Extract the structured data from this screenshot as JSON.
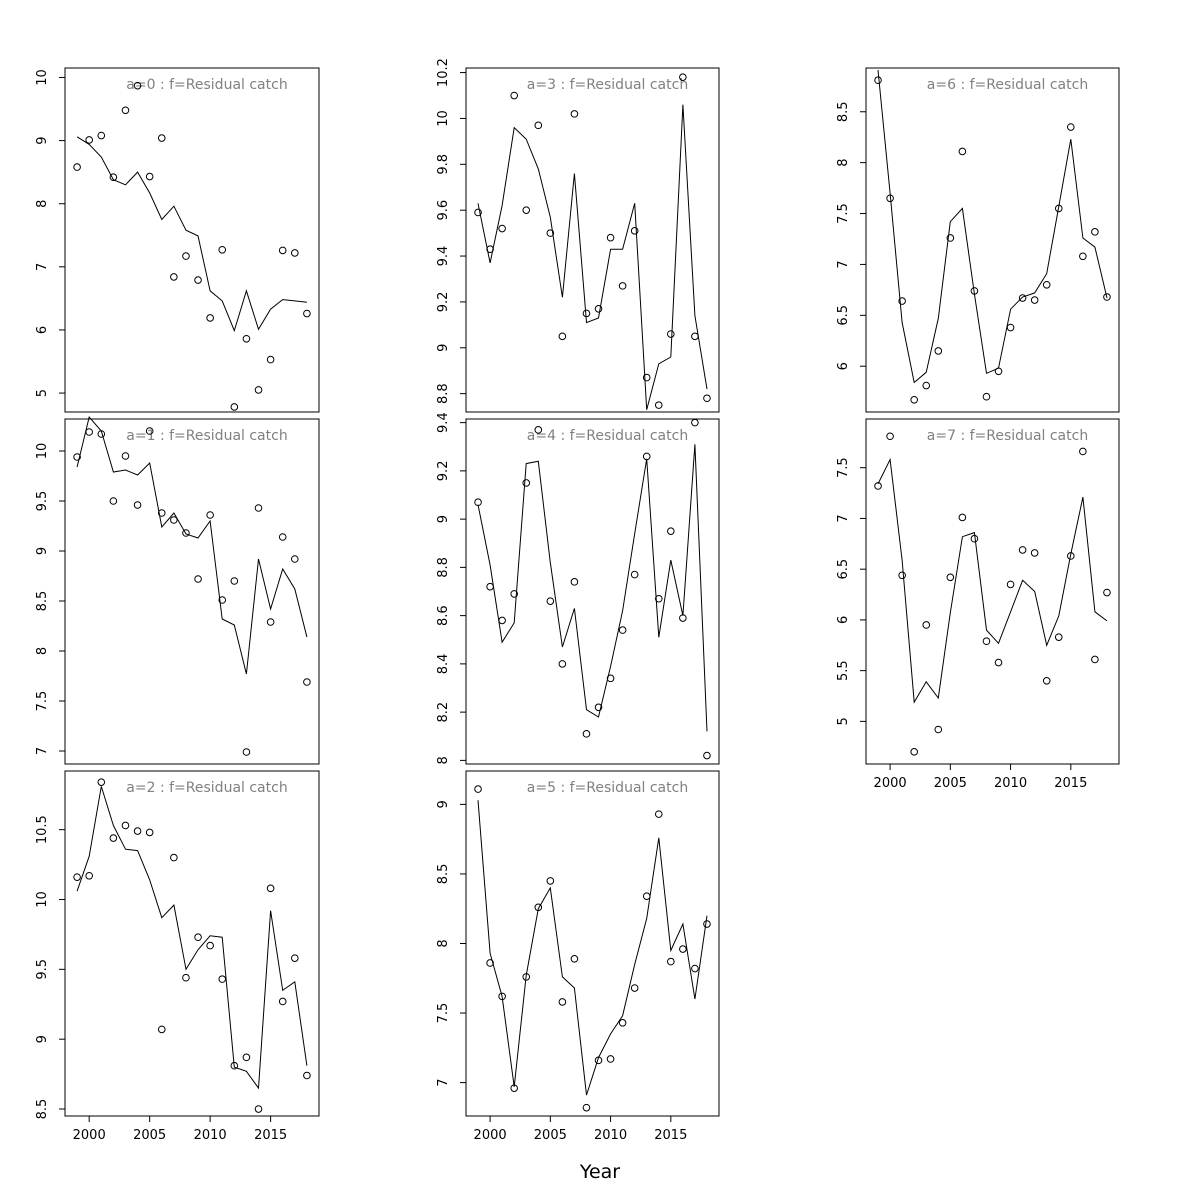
{
  "xlabel": "Year",
  "chart_data": [
    {
      "type": "scatter",
      "title": "a=0  :  f=Residual catch",
      "xlim": [
        1998,
        2019
      ],
      "ylim": [
        4.7,
        10.15
      ],
      "yticks": [
        5,
        6,
        7,
        8,
        9,
        10
      ],
      "xticks": [],
      "x": [
        1999,
        2000,
        2001,
        2002,
        2003,
        2004,
        2005,
        2006,
        2007,
        2008,
        2009,
        2010,
        2011,
        2012,
        2013,
        2014,
        2015,
        2016,
        2017,
        2018
      ],
      "observed": [
        8.58,
        9.01,
        9.08,
        8.42,
        9.48,
        9.87,
        8.43,
        9.04,
        6.84,
        7.17,
        6.79,
        6.19,
        7.27,
        4.78,
        5.86,
        5.05,
        5.53,
        7.26,
        7.22,
        6.26
      ],
      "fitted": [
        9.06,
        8.94,
        8.74,
        8.38,
        8.3,
        8.5,
        8.17,
        7.75,
        7.96,
        7.58,
        7.49,
        6.62,
        6.46,
        5.99,
        6.62,
        6.01,
        6.33,
        6.48,
        6.46,
        6.44
      ]
    },
    {
      "type": "scatter",
      "title": "a=1  :  f=Residual catch",
      "xlim": [
        1998,
        2019
      ],
      "ylim": [
        6.87,
        10.32
      ],
      "yticks": [
        7.0,
        7.5,
        8.0,
        8.5,
        9.0,
        9.5,
        10.0
      ],
      "xticks": [],
      "x": [
        1999,
        2000,
        2001,
        2002,
        2003,
        2004,
        2005,
        2006,
        2007,
        2008,
        2009,
        2010,
        2011,
        2012,
        2013,
        2014,
        2015,
        2016,
        2017,
        2018
      ],
      "observed": [
        9.94,
        10.19,
        10.17,
        9.5,
        9.95,
        9.46,
        10.2,
        9.38,
        9.31,
        9.18,
        8.72,
        9.36,
        8.51,
        8.7,
        6.99,
        9.43,
        8.29,
        9.14,
        8.92,
        7.69
      ],
      "fitted": [
        9.84,
        10.34,
        10.2,
        9.79,
        9.81,
        9.76,
        9.88,
        9.24,
        9.38,
        9.17,
        9.13,
        9.3,
        8.32,
        8.26,
        7.77,
        8.92,
        8.42,
        8.82,
        8.62,
        8.14
      ]
    },
    {
      "type": "scatter",
      "title": "a=2  :  f=Residual catch",
      "xlim": [
        1998,
        2019
      ],
      "ylim": [
        8.45,
        10.92
      ],
      "yticks": [
        8.5,
        9.0,
        9.5,
        10.0,
        10.5
      ],
      "xticks": [
        2000,
        2005,
        2010,
        2015
      ],
      "x": [
        1999,
        2000,
        2001,
        2002,
        2003,
        2004,
        2005,
        2006,
        2007,
        2008,
        2009,
        2010,
        2011,
        2012,
        2013,
        2014,
        2015,
        2016,
        2017,
        2018
      ],
      "observed": [
        10.16,
        10.17,
        10.84,
        10.44,
        10.53,
        10.49,
        10.48,
        9.07,
        10.3,
        9.44,
        9.73,
        9.67,
        9.43,
        8.81,
        8.87,
        8.5,
        10.08,
        9.27,
        9.58,
        8.74
      ],
      "fitted": [
        10.06,
        10.31,
        10.81,
        10.53,
        10.36,
        10.35,
        10.14,
        9.87,
        9.96,
        9.5,
        9.64,
        9.74,
        9.73,
        8.8,
        8.77,
        8.65,
        9.92,
        9.35,
        9.41,
        8.81
      ]
    },
    {
      "type": "scatter",
      "title": "a=3  :  f=Residual catch",
      "xlim": [
        1998,
        2019
      ],
      "ylim": [
        8.72,
        10.22
      ],
      "yticks": [
        8.8,
        9.0,
        9.2,
        9.4,
        9.6,
        9.8,
        10.0,
        10.2
      ],
      "xticks": [],
      "x": [
        1999,
        2000,
        2001,
        2002,
        2003,
        2004,
        2005,
        2006,
        2007,
        2008,
        2009,
        2010,
        2011,
        2012,
        2013,
        2014,
        2015,
        2016,
        2017,
        2018
      ],
      "observed": [
        9.59,
        9.43,
        9.52,
        10.1,
        9.6,
        9.97,
        9.5,
        9.05,
        10.02,
        9.15,
        9.17,
        9.48,
        9.27,
        9.51,
        8.87,
        8.75,
        9.06,
        10.18,
        9.05,
        8.78
      ],
      "fitted": [
        9.63,
        9.37,
        9.62,
        9.96,
        9.91,
        9.78,
        9.57,
        9.22,
        9.76,
        9.11,
        9.13,
        9.43,
        9.43,
        9.63,
        8.73,
        8.93,
        8.96,
        10.06,
        9.14,
        8.82
      ]
    },
    {
      "type": "scatter",
      "title": "a=4  :  f=Residual catch",
      "xlim": [
        1998,
        2019
      ],
      "ylim": [
        7.985,
        9.415
      ],
      "yticks": [
        8.0,
        8.2,
        8.4,
        8.6,
        8.8,
        9.0,
        9.2,
        9.4
      ],
      "xticks": [],
      "x": [
        1999,
        2000,
        2001,
        2002,
        2003,
        2004,
        2005,
        2006,
        2007,
        2008,
        2009,
        2010,
        2011,
        2012,
        2013,
        2014,
        2015,
        2016,
        2017,
        2018
      ],
      "observed": [
        9.07,
        8.72,
        8.58,
        8.69,
        9.15,
        9.37,
        8.66,
        8.4,
        8.74,
        8.11,
        8.22,
        8.34,
        8.54,
        8.77,
        9.26,
        8.67,
        8.95,
        8.59,
        9.4,
        8.02
      ],
      "fitted": [
        9.06,
        8.81,
        8.49,
        8.57,
        9.23,
        9.24,
        8.82,
        8.47,
        8.63,
        8.21,
        8.18,
        8.39,
        8.62,
        8.94,
        9.25,
        8.51,
        8.83,
        8.6,
        9.31,
        8.12
      ]
    },
    {
      "type": "scatter",
      "title": "a=5  :  f=Residual catch",
      "xlim": [
        1998,
        2019
      ],
      "ylim": [
        6.76,
        9.24
      ],
      "yticks": [
        7.0,
        7.5,
        8.0,
        8.5,
        9.0
      ],
      "xticks": [
        2000,
        2005,
        2010,
        2015
      ],
      "x": [
        1999,
        2000,
        2001,
        2002,
        2003,
        2004,
        2005,
        2006,
        2007,
        2008,
        2009,
        2010,
        2011,
        2012,
        2013,
        2014,
        2015,
        2016,
        2017,
        2018
      ],
      "observed": [
        9.11,
        7.86,
        7.62,
        6.96,
        7.76,
        8.26,
        8.45,
        7.58,
        7.89,
        6.82,
        7.16,
        7.17,
        7.43,
        7.68,
        8.34,
        8.93,
        7.87,
        7.96,
        7.82,
        8.14
      ],
      "fitted": [
        9.03,
        7.93,
        7.62,
        6.97,
        7.77,
        8.25,
        8.4,
        7.76,
        7.68,
        6.91,
        7.18,
        7.35,
        7.48,
        7.85,
        8.18,
        8.76,
        7.95,
        8.14,
        7.6,
        8.2
      ]
    },
    {
      "type": "scatter",
      "title": "a=6  :  f=Residual catch",
      "xlim": [
        1998,
        2019
      ],
      "ylim": [
        5.55,
        8.93
      ],
      "yticks": [
        6.0,
        6.5,
        7.0,
        7.5,
        8.0,
        8.5
      ],
      "xticks": [],
      "x": [
        1999,
        2000,
        2001,
        2002,
        2003,
        2004,
        2005,
        2006,
        2007,
        2008,
        2009,
        2010,
        2011,
        2012,
        2013,
        2014,
        2015,
        2016,
        2017,
        2018
      ],
      "observed": [
        8.81,
        7.65,
        6.64,
        5.67,
        5.81,
        6.15,
        7.26,
        8.11,
        6.74,
        5.7,
        5.95,
        6.38,
        6.67,
        6.65,
        6.8,
        7.55,
        8.35,
        7.08,
        7.32,
        6.68
      ],
      "fitted": [
        8.91,
        7.7,
        6.43,
        5.84,
        5.94,
        6.47,
        7.42,
        7.55,
        6.71,
        5.93,
        5.98,
        6.56,
        6.68,
        6.72,
        6.91,
        7.57,
        8.23,
        7.26,
        7.17,
        6.67
      ]
    },
    {
      "type": "scatter",
      "title": "a=7  :  f=Residual catch",
      "xlim": [
        1998,
        2019
      ],
      "ylim": [
        4.58,
        7.98
      ],
      "yticks": [
        5.0,
        5.5,
        6.0,
        6.5,
        7.0,
        7.5
      ],
      "xticks": [
        2000,
        2005,
        2010,
        2015
      ],
      "x": [
        1999,
        2000,
        2001,
        2002,
        2003,
        2004,
        2005,
        2006,
        2007,
        2008,
        2009,
        2010,
        2011,
        2012,
        2013,
        2014,
        2015,
        2016,
        2017,
        2018
      ],
      "observed": [
        7.32,
        7.81,
        6.44,
        4.7,
        5.95,
        4.92,
        6.42,
        7.01,
        6.8,
        5.79,
        5.58,
        6.35,
        6.69,
        6.66,
        5.4,
        5.83,
        6.63,
        7.66,
        5.61,
        6.27
      ],
      "fitted": [
        7.34,
        7.58,
        6.59,
        5.19,
        5.39,
        5.23,
        6.07,
        6.82,
        6.86,
        5.9,
        5.77,
        6.08,
        6.39,
        6.28,
        5.75,
        6.04,
        6.65,
        7.21,
        6.08,
        5.99
      ]
    }
  ]
}
